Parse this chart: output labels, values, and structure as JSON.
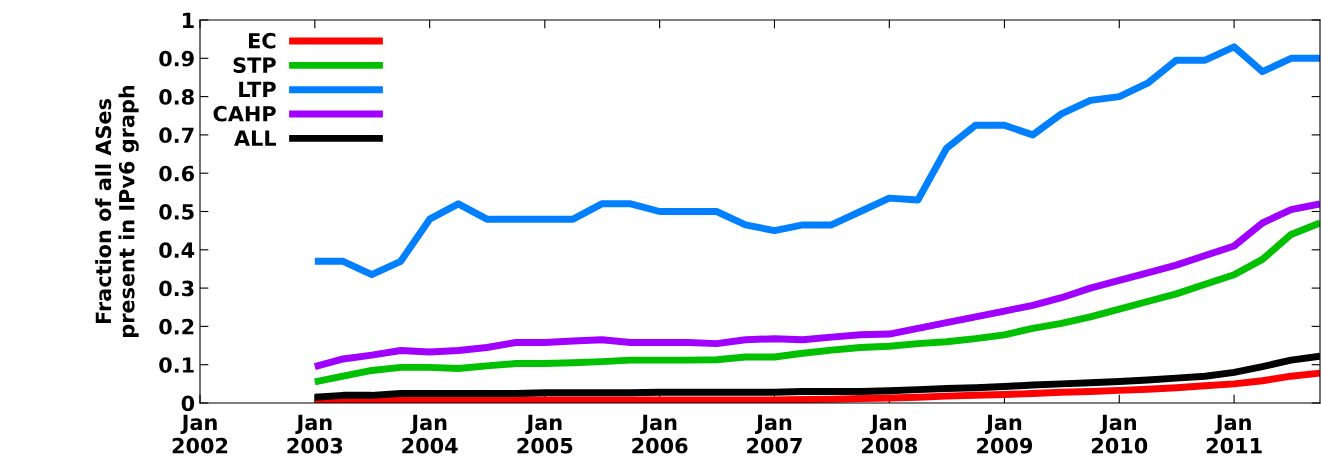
{
  "chart_data": {
    "type": "line",
    "ylabel": "Fraction of all ASes\npresent in IPv6 graph",
    "x": [
      "2003-01",
      "2003-04",
      "2003-07",
      "2003-10",
      "2004-01",
      "2004-04",
      "2004-07",
      "2004-10",
      "2005-01",
      "2005-04",
      "2005-07",
      "2005-10",
      "2006-01",
      "2006-04",
      "2006-07",
      "2006-10",
      "2007-01",
      "2007-04",
      "2007-07",
      "2007-10",
      "2008-01",
      "2008-04",
      "2008-07",
      "2008-10",
      "2009-01",
      "2009-04",
      "2009-07",
      "2009-10",
      "2010-01",
      "2010-04",
      "2010-07",
      "2010-10",
      "2011-01",
      "2011-04",
      "2011-07",
      "2011-10"
    ],
    "series": [
      {
        "name": "EC",
        "color": "#ff0000",
        "values": [
          0.003,
          0.005,
          0.005,
          0.007,
          0.007,
          0.007,
          0.008,
          0.008,
          0.008,
          0.008,
          0.008,
          0.008,
          0.008,
          0.008,
          0.008,
          0.008,
          0.008,
          0.009,
          0.01,
          0.012,
          0.013,
          0.015,
          0.018,
          0.02,
          0.022,
          0.025,
          0.028,
          0.03,
          0.033,
          0.036,
          0.04,
          0.045,
          0.05,
          0.058,
          0.07,
          0.078
        ]
      },
      {
        "name": "STP",
        "color": "#00c000",
        "values": [
          0.055,
          0.07,
          0.085,
          0.093,
          0.093,
          0.09,
          0.097,
          0.103,
          0.103,
          0.105,
          0.108,
          0.112,
          0.112,
          0.112,
          0.113,
          0.12,
          0.12,
          0.13,
          0.138,
          0.145,
          0.148,
          0.155,
          0.16,
          0.168,
          0.178,
          0.195,
          0.208,
          0.225,
          0.245,
          0.265,
          0.285,
          0.31,
          0.335,
          0.375,
          0.44,
          0.47
        ]
      },
      {
        "name": "LTP",
        "color": "#0080ff",
        "values": [
          0.37,
          0.37,
          0.335,
          0.37,
          0.48,
          0.52,
          0.48,
          0.48,
          0.48,
          0.48,
          0.52,
          0.52,
          0.5,
          0.5,
          0.5,
          0.465,
          0.45,
          0.465,
          0.465,
          0.5,
          0.535,
          0.53,
          0.665,
          0.725,
          0.725,
          0.7,
          0.755,
          0.79,
          0.8,
          0.835,
          0.895,
          0.895,
          0.93,
          0.865,
          0.9,
          0.9
        ]
      },
      {
        "name": "CAHP",
        "color": "#a000ff",
        "values": [
          0.095,
          0.115,
          0.125,
          0.137,
          0.133,
          0.137,
          0.145,
          0.158,
          0.158,
          0.162,
          0.165,
          0.158,
          0.158,
          0.158,
          0.155,
          0.165,
          0.168,
          0.165,
          0.172,
          0.178,
          0.18,
          0.195,
          0.21,
          0.225,
          0.24,
          0.255,
          0.275,
          0.3,
          0.32,
          0.34,
          0.36,
          0.385,
          0.41,
          0.47,
          0.505,
          0.52
        ]
      },
      {
        "name": "ALL",
        "color": "#000000",
        "values": [
          0.015,
          0.02,
          0.02,
          0.025,
          0.025,
          0.025,
          0.025,
          0.025,
          0.027,
          0.027,
          0.027,
          0.027,
          0.028,
          0.028,
          0.028,
          0.028,
          0.028,
          0.03,
          0.03,
          0.03,
          0.032,
          0.035,
          0.038,
          0.04,
          0.043,
          0.047,
          0.05,
          0.053,
          0.056,
          0.06,
          0.065,
          0.07,
          0.08,
          0.095,
          0.112,
          0.122
        ]
      }
    ],
    "xlim": [
      "2002-01",
      "2011-10"
    ],
    "xticks": [
      {
        "value": "2002-01",
        "label": "Jan\n2002"
      },
      {
        "value": "2003-01",
        "label": "Jan\n2003"
      },
      {
        "value": "2004-01",
        "label": "Jan\n2004"
      },
      {
        "value": "2005-01",
        "label": "Jan\n2005"
      },
      {
        "value": "2006-01",
        "label": "Jan\n2006"
      },
      {
        "value": "2007-01",
        "label": "Jan\n2007"
      },
      {
        "value": "2008-01",
        "label": "Jan\n2008"
      },
      {
        "value": "2009-01",
        "label": "Jan\n2009"
      },
      {
        "value": "2010-01",
        "label": "Jan\n2010"
      },
      {
        "value": "2011-01",
        "label": "Jan\n2011"
      }
    ],
    "ylim": [
      0,
      1
    ],
    "yticks": [
      0,
      0.1,
      0.2,
      0.3,
      0.4,
      0.5,
      0.6,
      0.7,
      0.8,
      0.9,
      1
    ],
    "grid": false,
    "legend": "top left",
    "marker": "none",
    "line_style": "solid"
  }
}
